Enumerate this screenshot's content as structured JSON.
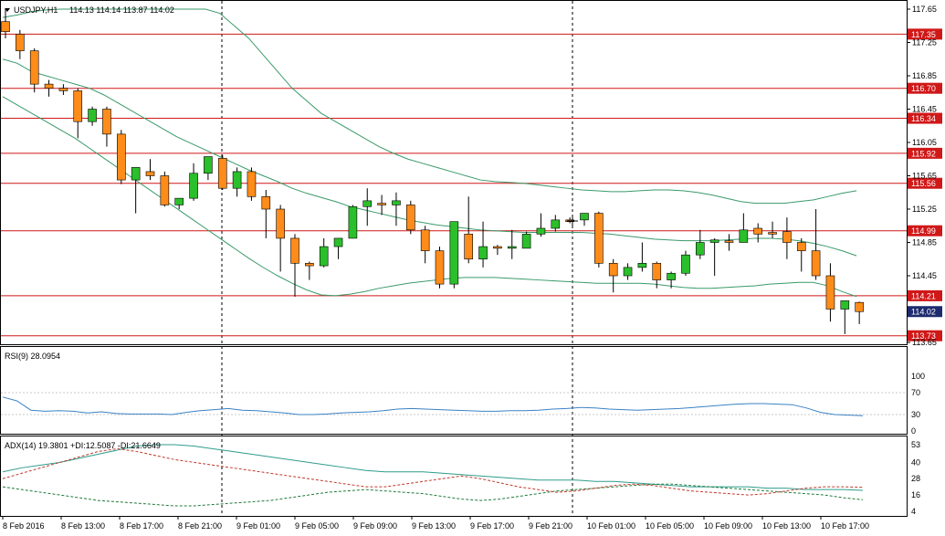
{
  "header": {
    "symbol": "USDJPY,H1",
    "ohlc": "114.13 114.14 113.87 114.02"
  },
  "indicators": {
    "rsi_label": "RSI(9) 28.0954",
    "adx_label": "ADX(14) 19.3801 +DI:12.5087 -DI:21.6649"
  },
  "colors": {
    "bull": "#2bbf2b",
    "bear": "#ff8c1a",
    "level_line": "#d01818",
    "level_box": "#d01818",
    "current_box": "#1c2a6e",
    "bollinger": "#3a9a6a",
    "rsi_line": "#3b82c4",
    "adx_line": "#2e9c8c",
    "plus_di": "#1e7a3a",
    "minus_di": "#c0392b",
    "grid": "#c8c8c8"
  },
  "chart_data": {
    "type": "candlestick",
    "symbol": "USDJPY",
    "timeframe": "H1",
    "price_axis": {
      "ylim": [
        113.65,
        117.65
      ],
      "ticks": [
        "117.65",
        "117.25",
        "116.85",
        "116.45",
        "116.05",
        "115.65",
        "115.25",
        "114.85",
        "114.45",
        "113.65"
      ]
    },
    "horizontal_levels": [
      "117.35",
      "116.70",
      "116.34",
      "115.92",
      "115.56",
      "114.99",
      "114.21",
      "113.73"
    ],
    "current_price": "114.02",
    "time_labels": [
      "8 Feb 2016",
      "8 Feb 13:00",
      "8 Feb 17:00",
      "8 Feb 21:00",
      "9 Feb 01:00",
      "9 Feb 05:00",
      "9 Feb 09:00",
      "9 Feb 13:00",
      "9 Feb 17:00",
      "9 Feb 21:00",
      "10 Feb 01:00",
      "10 Feb 05:00",
      "10 Feb 09:00",
      "10 Feb 13:00",
      "10 Feb 17:00"
    ],
    "candles": [
      {
        "o": 117.5,
        "h": 117.65,
        "c": 117.38,
        "l": 117.3
      },
      {
        "o": 117.35,
        "h": 117.4,
        "c": 117.15,
        "l": 117.05
      },
      {
        "o": 117.15,
        "h": 117.18,
        "c": 116.75,
        "l": 116.65
      },
      {
        "o": 116.75,
        "h": 116.8,
        "c": 116.7,
        "l": 116.6
      },
      {
        "o": 116.7,
        "h": 116.75,
        "c": 116.67,
        "l": 116.62
      },
      {
        "o": 116.67,
        "h": 116.7,
        "c": 116.3,
        "l": 116.1
      },
      {
        "o": 116.3,
        "h": 116.48,
        "c": 116.45,
        "l": 116.25
      },
      {
        "o": 116.45,
        "h": 116.48,
        "c": 116.15,
        "l": 116.0
      },
      {
        "o": 116.15,
        "h": 116.2,
        "c": 115.6,
        "l": 115.55
      },
      {
        "o": 115.6,
        "h": 115.75,
        "c": 115.75,
        "l": 115.2
      },
      {
        "o": 115.7,
        "h": 115.85,
        "c": 115.65,
        "l": 115.6
      },
      {
        "o": 115.65,
        "h": 115.7,
        "c": 115.3,
        "l": 115.28
      },
      {
        "o": 115.3,
        "h": 115.38,
        "c": 115.38,
        "l": 115.25
      },
      {
        "o": 115.38,
        "h": 115.8,
        "c": 115.68,
        "l": 115.35
      },
      {
        "o": 115.68,
        "h": 115.88,
        "c": 115.88,
        "l": 115.6
      },
      {
        "o": 115.86,
        "h": 115.9,
        "c": 115.5,
        "l": 115.48
      },
      {
        "o": 115.5,
        "h": 115.75,
        "c": 115.7,
        "l": 115.4
      },
      {
        "o": 115.7,
        "h": 115.75,
        "c": 115.4,
        "l": 115.35
      },
      {
        "o": 115.4,
        "h": 115.48,
        "c": 115.25,
        "l": 114.9
      },
      {
        "o": 115.25,
        "h": 115.3,
        "c": 114.9,
        "l": 114.5
      },
      {
        "o": 114.9,
        "h": 114.95,
        "c": 114.6,
        "l": 114.2
      },
      {
        "o": 114.6,
        "h": 114.62,
        "c": 114.57,
        "l": 114.4
      },
      {
        "o": 114.57,
        "h": 114.9,
        "c": 114.8,
        "l": 114.55
      },
      {
        "o": 114.8,
        "h": 114.9,
        "c": 114.9,
        "l": 114.65
      },
      {
        "o": 114.9,
        "h": 115.3,
        "c": 115.28,
        "l": 114.9
      },
      {
        "o": 115.28,
        "h": 115.5,
        "c": 115.35,
        "l": 115.05
      },
      {
        "o": 115.32,
        "h": 115.42,
        "c": 115.3,
        "l": 115.18
      },
      {
        "o": 115.3,
        "h": 115.45,
        "c": 115.35,
        "l": 115.05
      },
      {
        "o": 115.3,
        "h": 115.35,
        "c": 115.0,
        "l": 114.95
      },
      {
        "o": 115.0,
        "h": 115.05,
        "c": 114.75,
        "l": 114.6
      },
      {
        "o": 114.75,
        "h": 114.8,
        "c": 114.35,
        "l": 114.3
      },
      {
        "o": 114.35,
        "h": 115.1,
        "c": 115.1,
        "l": 114.3
      },
      {
        "o": 114.95,
        "h": 115.4,
        "c": 114.65,
        "l": 114.6
      },
      {
        "o": 114.65,
        "h": 115.1,
        "c": 114.8,
        "l": 114.55
      },
      {
        "o": 114.8,
        "h": 114.82,
        "c": 114.78,
        "l": 114.7
      },
      {
        "o": 114.78,
        "h": 115.0,
        "c": 114.8,
        "l": 114.65
      },
      {
        "o": 114.78,
        "h": 114.98,
        "c": 114.95,
        "l": 114.78
      },
      {
        "o": 114.95,
        "h": 115.2,
        "c": 115.02,
        "l": 114.92
      },
      {
        "o": 115.02,
        "h": 115.18,
        "c": 115.12,
        "l": 114.98
      },
      {
        "o": 115.12,
        "h": 115.15,
        "c": 115.1,
        "l": 115.08
      },
      {
        "o": 115.12,
        "h": 115.2,
        "c": 115.2,
        "l": 115.05
      },
      {
        "o": 115.2,
        "h": 115.22,
        "c": 114.6,
        "l": 114.55
      },
      {
        "o": 114.6,
        "h": 114.65,
        "c": 114.45,
        "l": 114.25
      },
      {
        "o": 114.45,
        "h": 114.6,
        "c": 114.55,
        "l": 114.4
      },
      {
        "o": 114.55,
        "h": 114.85,
        "c": 114.6,
        "l": 114.5
      },
      {
        "o": 114.6,
        "h": 114.62,
        "c": 114.4,
        "l": 114.3
      },
      {
        "o": 114.4,
        "h": 114.5,
        "c": 114.48,
        "l": 114.3
      },
      {
        "o": 114.48,
        "h": 114.75,
        "c": 114.7,
        "l": 114.45
      },
      {
        "o": 114.7,
        "h": 115.0,
        "c": 114.85,
        "l": 114.65
      },
      {
        "o": 114.85,
        "h": 114.9,
        "c": 114.88,
        "l": 114.45
      },
      {
        "o": 114.87,
        "h": 114.95,
        "c": 114.85,
        "l": 114.75
      },
      {
        "o": 114.85,
        "h": 115.2,
        "c": 115.0,
        "l": 114.85
      },
      {
        "o": 115.02,
        "h": 115.08,
        "c": 114.95,
        "l": 114.85
      },
      {
        "o": 114.97,
        "h": 115.1,
        "c": 114.95,
        "l": 114.9
      },
      {
        "o": 114.98,
        "h": 115.15,
        "c": 114.85,
        "l": 114.65
      },
      {
        "o": 114.85,
        "h": 114.9,
        "c": 114.75,
        "l": 114.5
      },
      {
        "o": 114.75,
        "h": 115.25,
        "c": 114.45,
        "l": 114.4
      },
      {
        "o": 114.45,
        "h": 114.6,
        "c": 114.05,
        "l": 113.9
      },
      {
        "o": 114.05,
        "h": 114.15,
        "c": 114.15,
        "l": 113.75
      },
      {
        "o": 114.13,
        "h": 114.14,
        "c": 114.02,
        "l": 113.87
      }
    ],
    "bollinger": {
      "upper": [
        117.55,
        117.58,
        117.62,
        117.64,
        117.65,
        117.65,
        117.65,
        117.65,
        117.65,
        117.65,
        117.65,
        117.65,
        117.65,
        117.65,
        117.65,
        117.6,
        117.45,
        117.3,
        117.1,
        116.9,
        116.7,
        116.55,
        116.4,
        116.3,
        116.2,
        116.1,
        116.0,
        115.92,
        115.85,
        115.8,
        115.75,
        115.7,
        115.65,
        115.6,
        115.58,
        115.57,
        115.56,
        115.54,
        115.52,
        115.5,
        115.48,
        115.47,
        115.46,
        115.46,
        115.47,
        115.48,
        115.48,
        115.47,
        115.45,
        115.42,
        115.38,
        115.34,
        115.32,
        115.32,
        115.32,
        115.34,
        115.36,
        115.4,
        115.44,
        115.47
      ],
      "middle": [
        117.05,
        117.0,
        116.9,
        116.85,
        116.8,
        116.75,
        116.7,
        116.62,
        116.52,
        116.42,
        116.32,
        116.22,
        116.12,
        116.04,
        115.96,
        115.88,
        115.8,
        115.72,
        115.65,
        115.58,
        115.5,
        115.44,
        115.39,
        115.34,
        115.28,
        115.24,
        115.2,
        115.16,
        115.12,
        115.09,
        115.06,
        115.04,
        115.02,
        115.0,
        114.99,
        114.98,
        114.97,
        114.97,
        114.97,
        114.97,
        114.97,
        114.96,
        114.95,
        114.93,
        114.91,
        114.89,
        114.88,
        114.87,
        114.87,
        114.87,
        114.88,
        114.89,
        114.9,
        114.9,
        114.89,
        114.87,
        114.84,
        114.8,
        114.75,
        114.69
      ],
      "lower": [
        116.6,
        116.5,
        116.4,
        116.3,
        116.2,
        116.1,
        115.98,
        115.86,
        115.74,
        115.62,
        115.5,
        115.38,
        115.26,
        115.14,
        115.02,
        114.9,
        114.78,
        114.66,
        114.55,
        114.45,
        114.36,
        114.28,
        114.22,
        114.21,
        114.23,
        114.26,
        114.3,
        114.33,
        114.36,
        114.38,
        114.4,
        114.42,
        114.43,
        114.43,
        114.43,
        114.42,
        114.41,
        114.4,
        114.39,
        114.38,
        114.37,
        114.36,
        114.36,
        114.36,
        114.36,
        114.35,
        114.33,
        114.31,
        114.3,
        114.3,
        114.31,
        114.32,
        114.33,
        114.35,
        114.36,
        114.37,
        114.37,
        114.33,
        114.26,
        114.2
      ]
    },
    "rsi": {
      "label": "RSI(9)",
      "ticks": [
        "100",
        "70",
        "30",
        "0"
      ],
      "ylim": [
        0,
        100
      ],
      "values": [
        62,
        55,
        38,
        36,
        37,
        36,
        33,
        35,
        32,
        31,
        31,
        31,
        30,
        34,
        37,
        39,
        41,
        38,
        37,
        35,
        33,
        30,
        30,
        31,
        33,
        34,
        35,
        37,
        40,
        41,
        40,
        39,
        38,
        37,
        36,
        36,
        37,
        37,
        38,
        40,
        41,
        43,
        42,
        40,
        39,
        38,
        39,
        40,
        41,
        43,
        45,
        47,
        49,
        50,
        50,
        49,
        48,
        42,
        34,
        30,
        29,
        28
      ]
    },
    "adx": {
      "label": "ADX(14)",
      "ticks": [
        "53",
        "40",
        "28",
        "16",
        "4"
      ],
      "ylim": [
        4,
        55
      ],
      "adx": [
        33,
        36,
        38,
        40,
        43,
        46,
        49,
        52,
        53,
        53,
        52,
        50,
        48,
        46,
        44,
        42,
        40,
        38,
        36,
        34,
        33,
        33,
        33,
        32,
        31,
        30,
        29,
        28,
        27,
        27,
        27,
        26,
        26,
        25,
        24,
        23,
        22,
        22,
        22,
        22,
        21,
        21,
        20,
        20,
        20,
        19.4
      ],
      "plus_di": [
        22,
        20,
        18,
        16,
        14,
        12,
        11,
        10,
        9,
        8,
        8,
        9,
        10,
        11,
        12,
        14,
        16,
        18,
        19,
        20,
        19,
        18,
        17,
        15,
        13,
        12,
        13,
        15,
        17,
        19,
        20,
        21,
        22,
        23,
        24,
        24,
        23,
        22,
        21,
        20,
        19,
        18,
        17,
        16,
        14,
        12.5
      ],
      "minus_di": [
        28,
        32,
        36,
        40,
        44,
        48,
        50,
        48,
        45,
        42,
        40,
        38,
        36,
        34,
        32,
        30,
        28,
        26,
        24,
        22,
        22,
        24,
        26,
        28,
        30,
        28,
        25,
        22,
        20,
        18,
        19,
        21,
        23,
        24,
        23,
        21,
        19,
        18,
        17,
        16,
        17,
        19,
        21,
        22,
        22,
        21.7
      ]
    }
  }
}
